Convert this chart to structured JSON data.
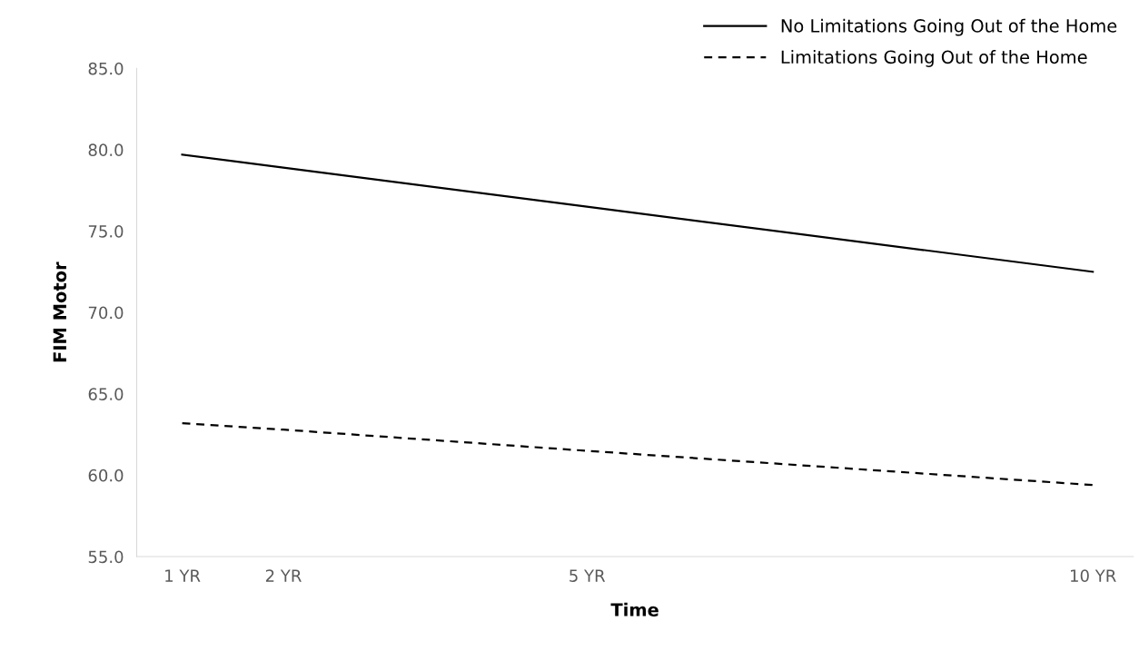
{
  "chart_data": {
    "type": "line",
    "xlabel": "Time",
    "ylabel": "FIM Motor",
    "x": [
      1,
      2,
      5,
      10
    ],
    "series": [
      {
        "name": "No Limitations Going Out of the Home",
        "color": "#000000",
        "line_style": "solid",
        "values": [
          79.7,
          78.9,
          76.5,
          72.5
        ]
      },
      {
        "name": "Limitations Going Out of the Home",
        "color": "#000000",
        "line_style": "dashed",
        "values": [
          63.2,
          62.8,
          61.5,
          59.4
        ]
      }
    ],
    "xlim": [
      0.55,
      10.4
    ],
    "xticks": [
      {
        "value": 1,
        "label": "1 YR"
      },
      {
        "value": 2,
        "label": "2 YR"
      },
      {
        "value": 5,
        "label": "5 YR"
      },
      {
        "value": 10,
        "label": "10 YR"
      }
    ],
    "ylim": [
      55,
      85
    ],
    "yticks": [
      {
        "value": 55,
        "label": "55.0"
      },
      {
        "value": 60,
        "label": "60.0"
      },
      {
        "value": 65,
        "label": "65.0"
      },
      {
        "value": 70,
        "label": "70.0"
      },
      {
        "value": 75,
        "label": "75.0"
      },
      {
        "value": 80,
        "label": "80.0"
      },
      {
        "value": 85,
        "label": "85.0"
      }
    ],
    "grid": false,
    "legend": "top right",
    "marker": "none"
  }
}
